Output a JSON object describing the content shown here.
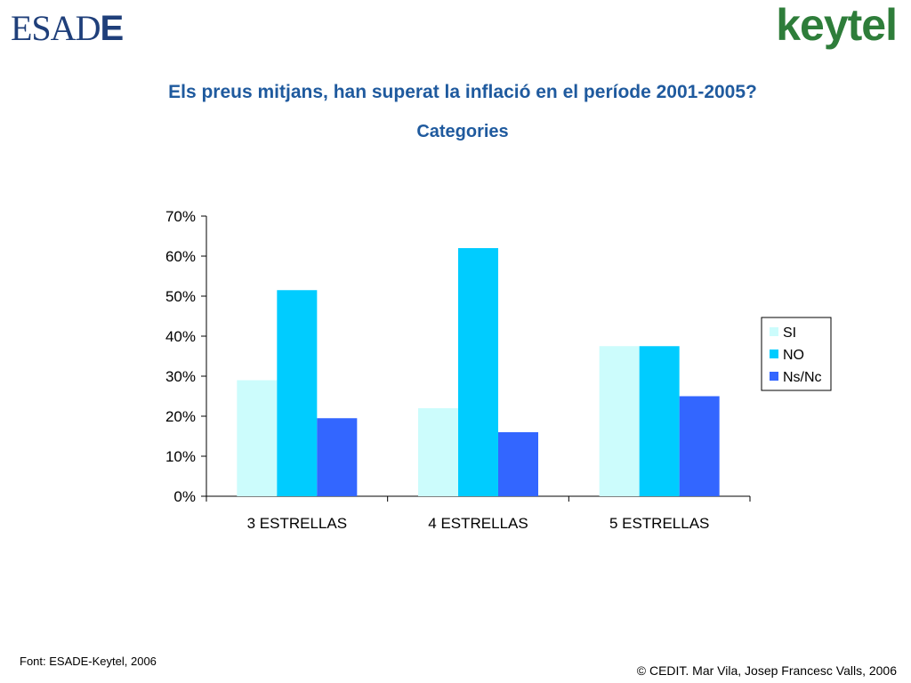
{
  "logos": {
    "left": "ESADE",
    "right": "keytel"
  },
  "title": "Els preus mitjans, han superat la inflació en el període 2001-2005?",
  "subtitle": "Categories",
  "footer": {
    "source": "Font: ESADE-Keytel, 2006",
    "copyright": "© CEDIT. Mar Vila, Josep Francesc Valls, 2006"
  },
  "colors": {
    "SI": "#ccfcfc",
    "NO": "#00ccff",
    "Ns/Nc": "#3366ff",
    "title": "#1f5a9e"
  },
  "chart_data": {
    "type": "bar",
    "categories": [
      "3 ESTRELLAS",
      "4 ESTRELLAS",
      "5 ESTRELLAS"
    ],
    "series": [
      {
        "name": "SI",
        "values": [
          29,
          22,
          37.5
        ]
      },
      {
        "name": "NO",
        "values": [
          51.5,
          62,
          37.5
        ]
      },
      {
        "name": "Ns/Nc",
        "values": [
          19.5,
          16,
          25
        ]
      }
    ],
    "yticks": [
      "0%",
      "10%",
      "20%",
      "30%",
      "40%",
      "50%",
      "60%",
      "70%"
    ],
    "ylim": [
      0,
      70
    ],
    "legend": "right",
    "grid": false
  }
}
